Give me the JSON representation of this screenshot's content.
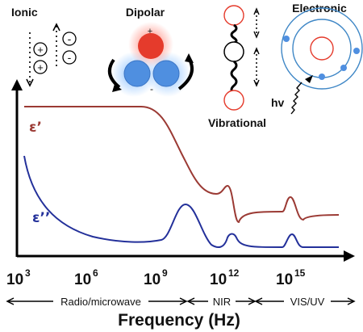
{
  "mechanisms": {
    "ionic": "Ionic",
    "dipolar": "Dipolar",
    "vibrational": "Vibrational",
    "electronic": "Electronic"
  },
  "charges": {
    "plus": "+",
    "minus": "-"
  },
  "photon_label": "hv",
  "curves": {
    "real": {
      "label": "ε’",
      "color": "#9b3a34"
    },
    "imag": {
      "label": "ε’’",
      "color": "#23309a"
    }
  },
  "x_axis": {
    "ticks": [
      {
        "base": "10",
        "exp": "3"
      },
      {
        "base": "10",
        "exp": "6"
      },
      {
        "base": "10",
        "exp": "9"
      },
      {
        "base": "10",
        "exp": "12"
      },
      {
        "base": "10",
        "exp": "15"
      }
    ],
    "bands": [
      "Radio/microwave",
      "NIR",
      "VIS/UV"
    ],
    "title": "Frequency (Hz)"
  },
  "colors": {
    "atom_red": "#e53b2c",
    "atom_blue": "#4f8fe0",
    "ring": "#3f87c6",
    "axis": "#000000"
  }
}
